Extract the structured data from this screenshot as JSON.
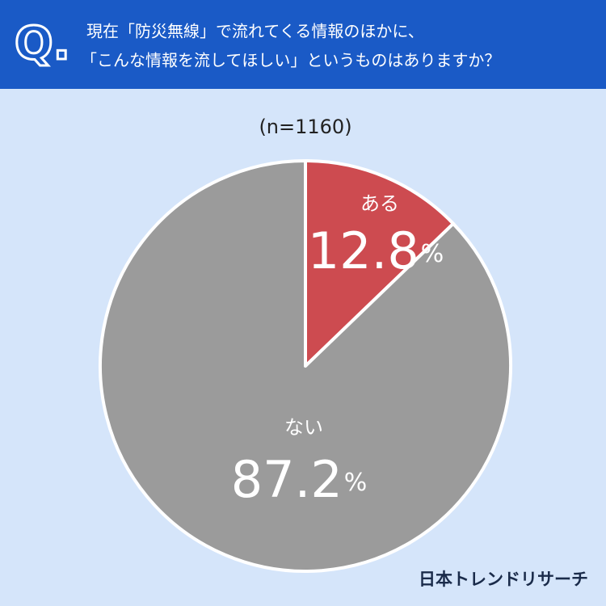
{
  "chart_data": {
    "type": "pie",
    "q_label": "Q.",
    "title": [
      "現在「防災無線」で流れてくる情報のほかに、",
      "「こんな情報を流してほしい」というものはありますか？"
    ],
    "subtitle": "(n=1160)",
    "categories": [
      "ある",
      "ない"
    ],
    "values": [
      12.8,
      87.2
    ],
    "unit": "%",
    "colors": [
      "#cd4b50",
      "#9b9b9b"
    ],
    "source": "日本トレンドリサーチ"
  }
}
